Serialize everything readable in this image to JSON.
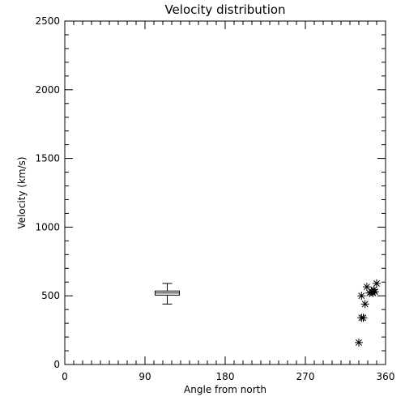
{
  "chart_data": {
    "type": "scatter",
    "title": "Velocity distribution",
    "xlabel": "Angle from north",
    "ylabel": "Velocity (km/s)",
    "xlim": [
      0,
      360
    ],
    "ylim": [
      0,
      2500
    ],
    "xticks": [
      0,
      90,
      180,
      270,
      360
    ],
    "xtick_labels": [
      "0",
      "90",
      "180",
      "270",
      "360"
    ],
    "yticks": [
      0,
      500,
      1000,
      1500,
      2000,
      2500
    ],
    "ytick_labels": [
      "0",
      "500",
      "1000",
      "1500",
      "2000",
      "2500"
    ],
    "x_minor_step": 10,
    "y_minor_step": 100,
    "grid": false,
    "boxplot": {
      "x": 115,
      "min": 440,
      "q1": 505,
      "median": 520,
      "q3": 535,
      "max": 590
    },
    "points": [
      {
        "x": 330,
        "y": 160
      },
      {
        "x": 333,
        "y": 340
      },
      {
        "x": 335,
        "y": 340
      },
      {
        "x": 333,
        "y": 500
      },
      {
        "x": 337,
        "y": 440
      },
      {
        "x": 339,
        "y": 565
      },
      {
        "x": 342,
        "y": 520
      },
      {
        "x": 344,
        "y": 530
      },
      {
        "x": 346,
        "y": 520
      },
      {
        "x": 347,
        "y": 545
      },
      {
        "x": 348,
        "y": 530
      },
      {
        "x": 350,
        "y": 590
      }
    ]
  }
}
